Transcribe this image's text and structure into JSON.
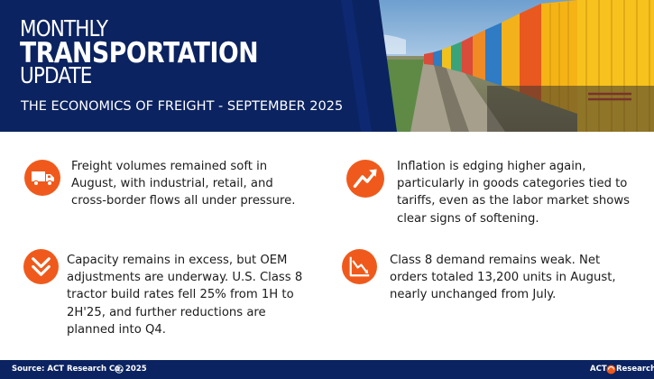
{
  "header": {
    "title_line1": "MONTHLY",
    "title_line2": "TRANSPORTATION",
    "title_line3": "UPDATE",
    "subtitle": "THE ECONOMICS OF FREIGHT - SEPTEMBER 2025",
    "panel_color": "#0b2360",
    "image_subject": "freight train of intermodal containers"
  },
  "points": [
    {
      "icon": "delivery-truck-icon",
      "text": "Freight volumes remained soft in August, with industrial, retail, and cross-border flows all under pressure."
    },
    {
      "icon": "trend-up-arrow-icon",
      "text": "Inflation is edging higher again, particularly in goods categories tied to tariffs, even as the labor market shows clear signs of softening."
    },
    {
      "icon": "double-chevron-down-icon",
      "text": "Capacity remains in excess, but OEM adjustments are underway. U.S. Class 8 tractor build rates fell 25% from 1H to 2H'25, and further reductions are planned into Q4."
    },
    {
      "icon": "downtrend-chart-icon",
      "text": "Class 8 demand remains weak. Net orders totaled 13,200 units in August, nearly unchanged from July."
    }
  ],
  "accent_color": "#ef5a1c",
  "footer": {
    "source": "Source: ACT Research Co.",
    "year": "2025",
    "logo_left": "ACT",
    "logo_right": "Research"
  }
}
